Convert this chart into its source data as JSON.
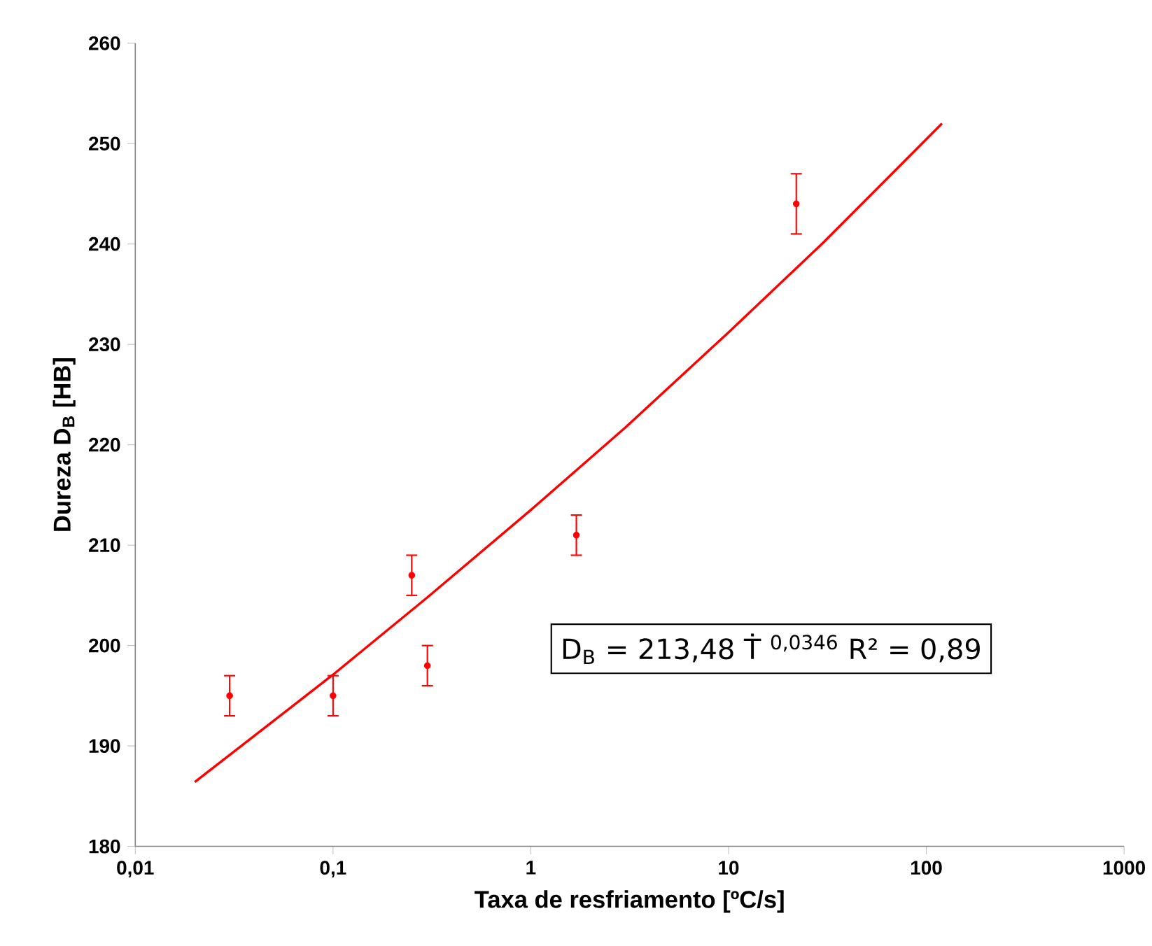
{
  "chart_data": {
    "type": "scatter",
    "xlabel": "Taxa de resfriamento [ºC/s]",
    "ylabel": "Dureza D$_{B}$ [HB]",
    "log": "x",
    "xlim": [
      0.01,
      1000
    ],
    "ylim": [
      180,
      260
    ],
    "xticks": [
      {
        "value": 0.01,
        "label": "0,01"
      },
      {
        "value": 0.1,
        "label": "0,1"
      },
      {
        "value": 1,
        "label": "1"
      },
      {
        "value": 10,
        "label": "10"
      },
      {
        "value": 100,
        "label": "100"
      },
      {
        "value": 1000,
        "label": "1000"
      }
    ],
    "yticks": [
      180,
      190,
      200,
      210,
      220,
      230,
      240,
      250,
      260
    ],
    "grid": false,
    "annotations": [
      "D$_{B}$ = 213,48 Ṫ $^{0,0346}$      R² = 0,89"
    ],
    "series": [
      {
        "type": "scatter",
        "marker": "circle",
        "color": "#ff0000",
        "x": [
          0.03,
          0.1,
          0.25,
          0.3,
          1.7,
          22
        ],
        "values": [
          195,
          195,
          207,
          198,
          211,
          244
        ],
        "errors": [
          2,
          2,
          2,
          2,
          2,
          3
        ]
      },
      {
        "type": "line",
        "color": "#ff0000",
        "marker": "none",
        "line_style": "solid",
        "x": [
          0.02,
          0.1,
          0.3,
          1,
          3,
          10,
          30,
          120
        ],
        "values": [
          186.4,
          197.1,
          204.8,
          213.5,
          221.7,
          231.2,
          240.1,
          252.0
        ]
      }
    ]
  }
}
